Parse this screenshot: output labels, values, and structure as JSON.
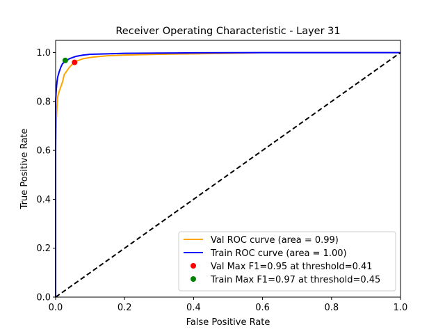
{
  "chart_data": {
    "type": "line",
    "title": "Receiver Operating Characteristic - Layer 31",
    "xlabel": "False Positive Rate",
    "ylabel": "True Positive Rate",
    "xlim": [
      0.0,
      1.0
    ],
    "ylim": [
      0.0,
      1.05
    ],
    "xticks": [
      0.0,
      0.2,
      0.4,
      0.6,
      0.8,
      1.0
    ],
    "xtick_labels": [
      "0.0",
      "0.2",
      "0.4",
      "0.6",
      "0.8",
      "1.0"
    ],
    "yticks": [
      0.0,
      0.2,
      0.4,
      0.6,
      0.8,
      1.0
    ],
    "ytick_labels": [
      "0.0",
      "0.2",
      "0.4",
      "0.6",
      "0.8",
      "1.0"
    ],
    "grid": false,
    "legend_position": "lower-right",
    "series": [
      {
        "name": "Val ROC curve (area = 0.99)",
        "color": "#ffa500",
        "style": "solid",
        "x": [
          0.0,
          0.0,
          0.002,
          0.004,
          0.006,
          0.01,
          0.015,
          0.02,
          0.025,
          0.03,
          0.04,
          0.05,
          0.06,
          0.07,
          0.08,
          0.1,
          0.12,
          0.15,
          0.2,
          0.3,
          0.4,
          0.5,
          0.6,
          0.8,
          1.0
        ],
        "y": [
          0.0,
          0.6,
          0.72,
          0.78,
          0.82,
          0.84,
          0.86,
          0.88,
          0.91,
          0.92,
          0.94,
          0.955,
          0.965,
          0.97,
          0.975,
          0.98,
          0.983,
          0.987,
          0.99,
          0.993,
          0.995,
          0.997,
          1.0,
          1.0,
          1.0
        ]
      },
      {
        "name": "Train ROC curve (area = 1.00)",
        "color": "#0000ff",
        "style": "solid",
        "x": [
          0.0,
          0.0,
          0.002,
          0.004,
          0.006,
          0.01,
          0.015,
          0.02,
          0.03,
          0.04,
          0.05,
          0.06,
          0.08,
          0.1,
          0.15,
          0.2,
          0.3,
          0.4,
          0.6,
          1.0
        ],
        "y": [
          0.0,
          0.8,
          0.85,
          0.88,
          0.9,
          0.92,
          0.94,
          0.955,
          0.965,
          0.975,
          0.98,
          0.985,
          0.99,
          0.993,
          0.995,
          0.997,
          0.998,
          0.999,
          1.0,
          1.0
        ]
      },
      {
        "name": "",
        "color": "#000000",
        "style": "dashed",
        "x": [
          0.0,
          1.0
        ],
        "y": [
          0.0,
          1.0
        ]
      }
    ],
    "points": [
      {
        "name": "Val Max F1=0.95 at threshold=0.41",
        "color": "#ff0000",
        "x": 0.055,
        "y": 0.96
      },
      {
        "name": "Train Max F1=0.97 at threshold=0.45",
        "color": "#008000",
        "x": 0.028,
        "y": 0.968
      }
    ]
  }
}
